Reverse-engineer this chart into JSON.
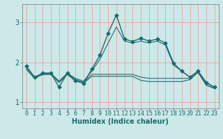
{
  "xlabel": "Humidex (Indice chaleur)",
  "ylabel": "",
  "bg_color": "#cce8e8",
  "line_color": "#1a6b6b",
  "grid_color": "#f0a0a0",
  "xlim": [
    -0.5,
    23.5
  ],
  "ylim": [
    0.85,
    3.45
  ],
  "yticks": [
    1,
    2,
    3
  ],
  "xticks": [
    0,
    1,
    2,
    3,
    4,
    5,
    6,
    7,
    8,
    9,
    10,
    11,
    12,
    13,
    14,
    15,
    16,
    17,
    18,
    19,
    20,
    21,
    22,
    23
  ],
  "series": [
    {
      "x": [
        0,
        1,
        2,
        3,
        4,
        5,
        6,
        7,
        8,
        9,
        10,
        11,
        12,
        13,
        14,
        15,
        16,
        17,
        18,
        19,
        20,
        21,
        22,
        23
      ],
      "y": [
        1.9,
        1.63,
        1.73,
        1.73,
        1.38,
        1.73,
        1.55,
        1.48,
        1.83,
        2.18,
        2.73,
        3.18,
        2.58,
        2.52,
        2.6,
        2.53,
        2.58,
        2.48,
        1.98,
        1.78,
        1.63,
        1.78,
        1.5,
        1.38
      ],
      "marker": "D",
      "markersize": 2.5,
      "linewidth": 1.0
    },
    {
      "x": [
        0,
        1,
        2,
        3,
        4,
        5,
        6,
        7,
        8,
        9,
        10,
        11,
        12,
        13,
        14,
        15,
        16,
        17,
        18,
        19,
        20,
        21,
        22,
        23
      ],
      "y": [
        1.88,
        1.63,
        1.73,
        1.73,
        1.53,
        1.73,
        1.6,
        1.53,
        1.78,
        2.08,
        2.48,
        2.88,
        2.53,
        2.48,
        2.53,
        2.48,
        2.53,
        2.43,
        1.93,
        1.78,
        1.63,
        1.78,
        1.48,
        1.38
      ],
      "marker": null,
      "linewidth": 0.8
    },
    {
      "x": [
        0,
        1,
        2,
        3,
        4,
        5,
        6,
        7,
        8,
        9,
        10,
        11,
        12,
        13,
        14,
        15,
        16,
        17,
        18,
        19,
        20,
        21,
        22,
        23
      ],
      "y": [
        1.83,
        1.6,
        1.7,
        1.7,
        1.5,
        1.7,
        1.57,
        1.5,
        1.7,
        1.7,
        1.7,
        1.7,
        1.7,
        1.7,
        1.63,
        1.6,
        1.6,
        1.6,
        1.6,
        1.6,
        1.6,
        1.75,
        1.43,
        1.35
      ],
      "marker": null,
      "linewidth": 0.8
    },
    {
      "x": [
        0,
        1,
        2,
        3,
        4,
        5,
        6,
        7,
        8,
        9,
        10,
        11,
        12,
        13,
        14,
        15,
        16,
        17,
        18,
        19,
        20,
        21,
        22,
        23
      ],
      "y": [
        1.83,
        1.6,
        1.7,
        1.7,
        1.5,
        1.7,
        1.53,
        1.48,
        1.65,
        1.65,
        1.65,
        1.65,
        1.65,
        1.65,
        1.55,
        1.52,
        1.52,
        1.52,
        1.52,
        1.52,
        1.57,
        1.75,
        1.43,
        1.35
      ],
      "marker": null,
      "linewidth": 0.8
    }
  ],
  "tick_fontsize": 6,
  "xlabel_fontsize": 7
}
